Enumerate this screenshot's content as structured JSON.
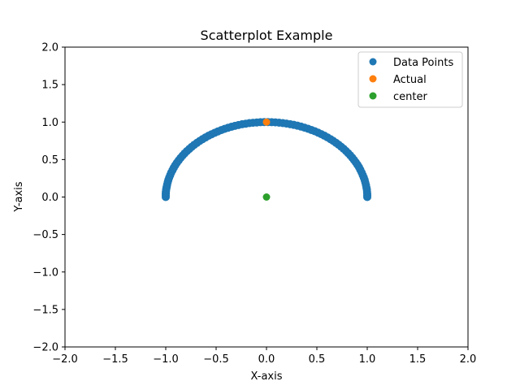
{
  "chart_data": {
    "type": "scatter",
    "title": "Scatterplot Example",
    "xlabel": "X-axis",
    "ylabel": "Y-axis",
    "xlim": [
      -2.0,
      2.0
    ],
    "ylim": [
      -2.0,
      2.0
    ],
    "xticks": [
      -2.0,
      -1.5,
      -1.0,
      -0.5,
      0.0,
      0.5,
      1.0,
      1.5,
      2.0
    ],
    "yticks": [
      -2.0,
      -1.5,
      -1.0,
      -0.5,
      0.0,
      0.5,
      1.0,
      1.5,
      2.0
    ],
    "xtick_labels": [
      "−2.0",
      "−1.5",
      "−1.0",
      "−0.5",
      "0.0",
      "0.5",
      "1.0",
      "1.5",
      "2.0"
    ],
    "ytick_labels": [
      "−2.0",
      "−1.5",
      "−1.0",
      "−0.5",
      "0.0",
      "0.5",
      "1.0",
      "1.5",
      "2.0"
    ],
    "grid": false,
    "legend_position": "top-right",
    "series": [
      {
        "name": "Data Points",
        "color": "#1f77b4",
        "x": [
          -1.0,
          -1.0,
          -1.0,
          -0.999,
          -0.998,
          -0.996,
          -0.993,
          -0.99,
          -0.986,
          -0.98,
          -0.974,
          -0.966,
          -0.956,
          -0.946,
          -0.933,
          -0.92,
          -0.905,
          -0.889,
          -0.871,
          -0.853,
          -0.833,
          -0.812,
          -0.79,
          -0.766,
          -0.742,
          -0.717,
          -0.69,
          -0.663,
          -0.635,
          -0.606,
          -0.576,
          -0.545,
          -0.514,
          -0.482,
          -0.449,
          -0.416,
          -0.382,
          -0.348,
          -0.313,
          -0.278,
          -0.242,
          -0.206,
          -0.17,
          -0.134,
          -0.097,
          -0.06,
          -0.023,
          0.014,
          0.051,
          0.088,
          0.125,
          0.162,
          0.198,
          0.235,
          0.271,
          0.307,
          0.342,
          0.377,
          0.412,
          0.446,
          0.479,
          0.512,
          0.544,
          0.575,
          0.605,
          0.634,
          0.662,
          0.689,
          0.716,
          0.741,
          0.765,
          0.788,
          0.81,
          0.831,
          0.851,
          0.869,
          0.887,
          0.903,
          0.918,
          0.931,
          0.944,
          0.955,
          0.965,
          0.974,
          0.981,
          0.987,
          0.992,
          0.996,
          0.998,
          1.0,
          1.0,
          1.0
        ],
        "y": [
          0.0,
          0.02,
          0.04,
          0.06,
          0.08,
          0.1,
          0.12,
          0.14,
          0.168,
          0.2,
          0.228,
          0.26,
          0.292,
          0.325,
          0.358,
          0.392,
          0.425,
          0.458,
          0.49,
          0.522,
          0.553,
          0.583,
          0.613,
          0.642,
          0.67,
          0.697,
          0.723,
          0.748,
          0.772,
          0.795,
          0.817,
          0.838,
          0.857,
          0.876,
          0.893,
          0.909,
          0.924,
          0.937,
          0.95,
          0.961,
          0.971,
          0.979,
          0.986,
          0.991,
          0.995,
          0.998,
          1.0,
          1.0,
          0.999,
          0.996,
          0.992,
          0.987,
          0.98,
          0.972,
          0.963,
          0.952,
          0.94,
          0.926,
          0.911,
          0.895,
          0.878,
          0.859,
          0.839,
          0.818,
          0.796,
          0.773,
          0.749,
          0.724,
          0.698,
          0.671,
          0.644,
          0.615,
          0.586,
          0.556,
          0.525,
          0.494,
          0.462,
          0.43,
          0.398,
          0.364,
          0.328,
          0.294,
          0.262,
          0.228,
          0.194,
          0.16,
          0.126,
          0.1,
          0.07,
          0.04,
          0.02,
          0.0
        ]
      },
      {
        "name": "Actual",
        "color": "#ff7f0e",
        "x": [
          0.0
        ],
        "y": [
          1.0
        ]
      },
      {
        "name": "center",
        "color": "#2ca02c",
        "x": [
          0.0
        ],
        "y": [
          0.0
        ]
      }
    ]
  }
}
